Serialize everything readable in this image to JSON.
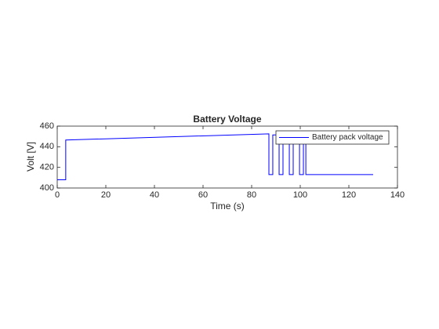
{
  "chart_data": {
    "type": "line",
    "title": "Battery Voltage",
    "x_label": "Time (s)",
    "y_label": "Volt [V]",
    "x": [
      0,
      3.5,
      3.5,
      87.1,
      87.1,
      88.7,
      88.7,
      91.3,
      91.3,
      92.9,
      92.9,
      95.5,
      95.5,
      97.1,
      97.1,
      99.7,
      99.7,
      101.3,
      101.3,
      102.3,
      102.3,
      130
    ],
    "series": [
      {
        "name": "Battery pack voltage",
        "color": "#0000ff",
        "values": [
          408,
          408,
          446.5,
          452.5,
          413,
          413,
          451.5,
          451.5,
          413,
          413,
          451.5,
          451.5,
          413,
          413,
          451.5,
          451.5,
          413,
          413,
          451.5,
          451.5,
          413,
          413
        ]
      }
    ],
    "xlim": [
      0,
      140
    ],
    "xticks": [
      0,
      20,
      40,
      60,
      80,
      100,
      120,
      140
    ],
    "ylim": [
      400,
      460
    ],
    "yticks": [
      400,
      420,
      440,
      460
    ],
    "legend_position": "northeast",
    "grid": false
  }
}
